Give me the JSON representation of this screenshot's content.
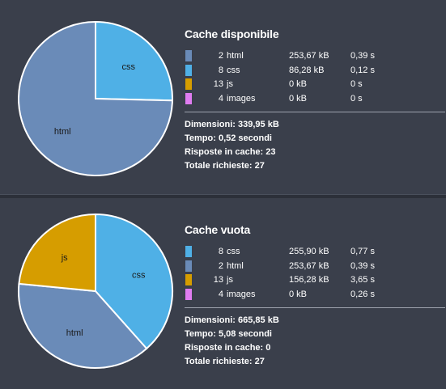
{
  "sections": [
    {
      "title": "Cache disponibile",
      "rows": [
        {
          "count": "2",
          "type": "html",
          "size": "253,67 kB",
          "time": "0,39 s",
          "color": "#6a8bb8"
        },
        {
          "count": "8",
          "type": "css",
          "size": "86,28 kB",
          "time": "0,12 s",
          "color": "#4fb0e6"
        },
        {
          "count": "13",
          "type": "js",
          "size": "0 kB",
          "time": "0 s",
          "color": "#d69d00"
        },
        {
          "count": "4",
          "type": "images",
          "size": "0 kB",
          "time": "0 s",
          "color": "#df7cf0"
        }
      ],
      "summary": [
        "Dimensioni: 339,95 kB",
        "Tempo: 0,52 secondi",
        "Risposte in cache: 23",
        "Totale richieste: 27"
      ],
      "pie": [
        {
          "label": "css",
          "value": 86.28,
          "color": "#4fb0e6"
        },
        {
          "label": "html",
          "value": 253.67,
          "color": "#6a8bb8"
        }
      ]
    },
    {
      "title": "Cache vuota",
      "rows": [
        {
          "count": "8",
          "type": "css",
          "size": "255,90 kB",
          "time": "0,77 s",
          "color": "#4fb0e6"
        },
        {
          "count": "2",
          "type": "html",
          "size": "253,67 kB",
          "time": "0,39 s",
          "color": "#6a8bb8"
        },
        {
          "count": "13",
          "type": "js",
          "size": "156,28 kB",
          "time": "3,65 s",
          "color": "#d69d00"
        },
        {
          "count": "4",
          "type": "images",
          "size": "0 kB",
          "time": "0,26 s",
          "color": "#df7cf0"
        }
      ],
      "summary": [
        "Dimensioni: 665,85 kB",
        "Tempo: 5,08 secondi",
        "Risposte in cache: 0",
        "Totale richieste: 27"
      ],
      "pie": [
        {
          "label": "css",
          "value": 255.9,
          "color": "#4fb0e6"
        },
        {
          "label": "html",
          "value": 253.67,
          "color": "#6a8bb8"
        },
        {
          "label": "js",
          "value": 156.28,
          "color": "#d69d00"
        }
      ]
    }
  ]
}
